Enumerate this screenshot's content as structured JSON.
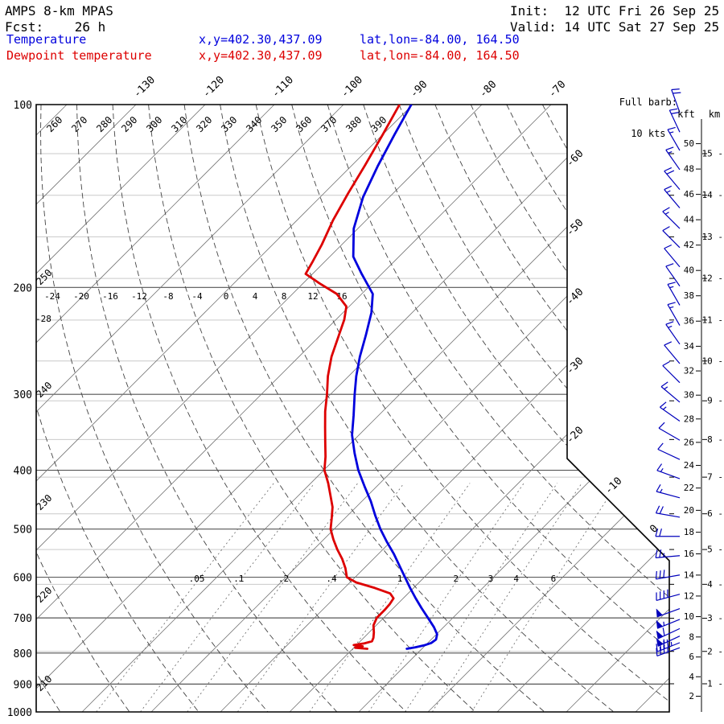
{
  "header": {
    "title": "AMPS 8-km MPAS",
    "fcst": "Fcst:    26 h",
    "init": "Init:  12 UTC Fri 26 Sep 25",
    "valid": "Valid: 14 UTC Sat 27 Sep 25"
  },
  "legend": {
    "temperature": {
      "label": "Temperature",
      "xy": "x,y=402.30,437.09",
      "latlon": "lat,lon=-84.00, 164.50",
      "color": "#0000dd"
    },
    "dewpoint": {
      "label": "Dewpoint temperature",
      "xy": "x,y=402.30,437.09",
      "latlon": "lat,lon=-84.00, 164.50",
      "color": "#dd0000"
    }
  },
  "barb_legend": {
    "line1": "Full barb:",
    "line2": "10 kts"
  },
  "axes": {
    "pressure_ticks": [
      100,
      200,
      300,
      400,
      500,
      600,
      700,
      800,
      900,
      1000
    ],
    "kft_header": "kft",
    "km_header": "km",
    "kft_ticks": [
      50,
      48,
      46,
      44,
      42,
      40,
      38,
      36,
      34,
      32,
      30,
      28,
      26,
      24,
      22,
      20,
      18,
      16,
      14,
      12,
      10,
      8,
      6,
      4,
      2
    ],
    "km_ticks": [
      15,
      14,
      13,
      12,
      11,
      10,
      9,
      8,
      7,
      6,
      5,
      4,
      3,
      2,
      1
    ],
    "isotherm_top_labels": [
      -130,
      -120,
      -110,
      -100,
      -90,
      -80,
      -70
    ],
    "isotherm_right_labels": [
      -60,
      -50,
      -40,
      -30,
      -20
    ],
    "isotherm_diag_labels": [
      -10,
      0
    ],
    "theta_top_labels": [
      260,
      270,
      280,
      290,
      300,
      310,
      320,
      330,
      340,
      350,
      360,
      370,
      380,
      390
    ],
    "theta_left_labels": [
      250,
      240,
      230,
      220,
      210
    ],
    "temp_row_200_labels": [
      "-24",
      "-20",
      "-16",
      "-12",
      "-8",
      "-4",
      "0",
      "4",
      "8",
      "12",
      "16"
    ],
    "temp_row_left_label": "-28",
    "mixing_ratio_labels": [
      ".05",
      ".1",
      ".2",
      ".4",
      "1",
      "2",
      "3",
      "4",
      "6"
    ],
    "mixing_ratio_values": [
      0.05,
      0.1,
      0.2,
      0.4,
      1,
      2,
      3,
      4,
      6
    ]
  },
  "chart_data": {
    "type": "skewt",
    "title": "AMPS 8-km MPAS 26 h forecast sounding",
    "location": {
      "xy": "402.30,437.09",
      "lat": -84.0,
      "lon": 164.5
    },
    "pressure_range_hPa": [
      100,
      1000
    ],
    "isotherm_step_degC": 10,
    "full_barb_kts": 10,
    "temperature_series": {
      "name": "Temperature",
      "color": "#0000dd",
      "points_p_hPa_T_degC": [
        [
          100,
          -90.2
        ],
        [
          112,
          -88.3
        ],
        [
          126,
          -86.2
        ],
        [
          142,
          -83.8
        ],
        [
          160,
          -80.6
        ],
        [
          178,
          -76.6
        ],
        [
          190,
          -72.9
        ],
        [
          205,
          -68.4
        ],
        [
          220,
          -65.9
        ],
        [
          240,
          -63.4
        ],
        [
          260,
          -61.2
        ],
        [
          280,
          -58.9
        ],
        [
          300,
          -56.5
        ],
        [
          325,
          -53.6
        ],
        [
          350,
          -51.0
        ],
        [
          375,
          -48.0
        ],
        [
          400,
          -45.0
        ],
        [
          425,
          -41.8
        ],
        [
          450,
          -38.7
        ],
        [
          475,
          -36.0
        ],
        [
          500,
          -33.3
        ],
        [
          525,
          -30.5
        ],
        [
          550,
          -27.7
        ],
        [
          575,
          -25.2
        ],
        [
          600,
          -22.8
        ],
        [
          625,
          -20.5
        ],
        [
          650,
          -18.2
        ],
        [
          675,
          -15.9
        ],
        [
          700,
          -13.6
        ],
        [
          725,
          -11.4
        ],
        [
          745,
          -9.9
        ],
        [
          760,
          -9.3
        ],
        [
          770,
          -9.5
        ],
        [
          777,
          -10.2
        ],
        [
          783,
          -11.2
        ],
        [
          787,
          -12.2
        ]
      ]
    },
    "dewpoint_series": {
      "name": "Dewpoint temperature",
      "color": "#dd0000",
      "points_p_hPa_T_degC": [
        [
          100,
          -91.9
        ],
        [
          112,
          -90.0
        ],
        [
          126,
          -88.1
        ],
        [
          140,
          -86.5
        ],
        [
          155,
          -84.8
        ],
        [
          170,
          -82.9
        ],
        [
          182,
          -81.7
        ],
        [
          190,
          -81.0
        ],
        [
          197,
          -77.6
        ],
        [
          205,
          -73.6
        ],
        [
          215,
          -70.4
        ],
        [
          226,
          -68.8
        ],
        [
          240,
          -67.3
        ],
        [
          260,
          -65.3
        ],
        [
          280,
          -63.0
        ],
        [
          300,
          -60.5
        ],
        [
          320,
          -58.3
        ],
        [
          340,
          -56.0
        ],
        [
          360,
          -53.8
        ],
        [
          380,
          -51.7
        ],
        [
          400,
          -49.9
        ],
        [
          420,
          -47.5
        ],
        [
          440,
          -45.4
        ],
        [
          460,
          -43.4
        ],
        [
          480,
          -41.9
        ],
        [
          500,
          -40.5
        ],
        [
          520,
          -38.6
        ],
        [
          540,
          -36.6
        ],
        [
          560,
          -34.5
        ],
        [
          580,
          -32.7
        ],
        [
          600,
          -31.2
        ],
        [
          612,
          -29.1
        ],
        [
          625,
          -25.6
        ],
        [
          638,
          -22.6
        ],
        [
          650,
          -21.4
        ],
        [
          665,
          -21.1
        ],
        [
          680,
          -21.0
        ],
        [
          700,
          -21.0
        ],
        [
          720,
          -20.4
        ],
        [
          740,
          -19.3
        ],
        [
          755,
          -18.6
        ],
        [
          765,
          -18.3
        ],
        [
          771,
          -19.1
        ],
        [
          776,
          -20.4
        ],
        [
          780,
          -18.9
        ],
        [
          784,
          -19.8
        ],
        [
          787,
          -17.9
        ]
      ]
    },
    "wind_barbs_p_spdkt_dirdeg": [
      [
        103,
        20,
        340
      ],
      [
        111,
        20,
        335
      ],
      [
        119,
        15,
        330
      ],
      [
        128,
        15,
        325
      ],
      [
        138,
        20,
        320
      ],
      [
        148,
        15,
        320
      ],
      [
        160,
        15,
        315
      ],
      [
        172,
        10,
        315
      ],
      [
        185,
        10,
        320
      ],
      [
        199,
        10,
        325
      ],
      [
        214,
        15,
        330
      ],
      [
        231,
        15,
        330
      ],
      [
        248,
        15,
        325
      ],
      [
        267,
        10,
        320
      ],
      [
        287,
        10,
        315
      ],
      [
        309,
        15,
        310
      ],
      [
        332,
        15,
        305
      ],
      [
        357,
        10,
        300
      ],
      [
        384,
        10,
        295
      ],
      [
        413,
        15,
        290
      ],
      [
        444,
        15,
        285
      ],
      [
        478,
        20,
        280
      ],
      [
        514,
        20,
        270
      ],
      [
        553,
        25,
        265
      ],
      [
        595,
        30,
        260
      ],
      [
        640,
        40,
        255
      ],
      [
        676,
        50,
        250
      ],
      [
        704,
        55,
        248
      ],
      [
        729,
        60,
        245
      ],
      [
        750,
        55,
        245
      ],
      [
        769,
        45,
        248
      ],
      [
        784,
        35,
        250
      ]
    ]
  }
}
